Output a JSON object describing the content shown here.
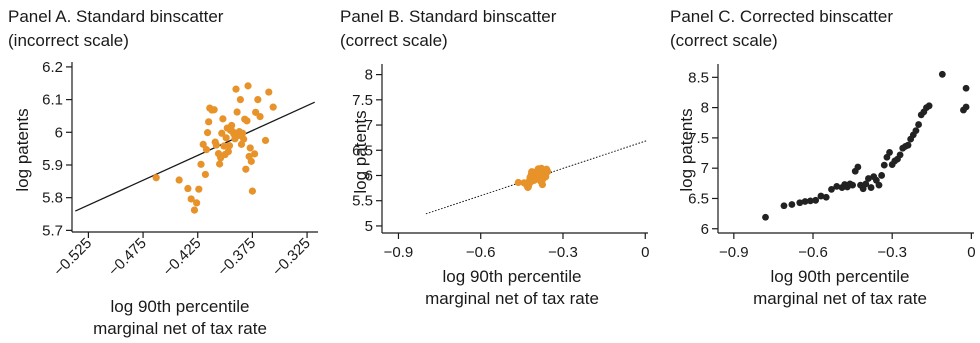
{
  "chart_data": [
    {
      "type": "scatter",
      "title": "Panel A. Standard binscatter",
      "subtitle": "(incorrect scale)",
      "xlabel": [
        "log 90th percentile",
        "marginal net of tax rate"
      ],
      "ylabel": "log patents",
      "xlim": [
        -0.54,
        -0.315
      ],
      "ylim": [
        5.695,
        6.215
      ],
      "xticks": [
        -0.525,
        -0.475,
        -0.425,
        -0.375,
        -0.325
      ],
      "xtick_labels": [
        "−0.525",
        "−0.475",
        "−0.425",
        "−0.375",
        "−0.325"
      ],
      "yticks": [
        5.7,
        5.8,
        5.9,
        6.0,
        6.1,
        6.2
      ],
      "ytick_labels": [
        "5.7",
        "5.8",
        "5.9",
        "6",
        "6.1",
        "6.2"
      ],
      "grid": false,
      "fit_line": {
        "x": [
          -0.537,
          -0.318
        ],
        "y": [
          5.759,
          6.092
        ],
        "style": "solid"
      },
      "series": [
        {
          "color": "#E8922A",
          "points": [
            [
              -0.463,
              5.861
            ],
            [
              -0.442,
              5.854
            ],
            [
              -0.434,
              5.828
            ],
            [
              -0.431,
              5.796
            ],
            [
              -0.428,
              5.762
            ],
            [
              -0.426,
              5.784
            ],
            [
              -0.424,
              5.826
            ],
            [
              -0.422,
              5.902
            ],
            [
              -0.42,
              5.963
            ],
            [
              -0.418,
              5.871
            ],
            [
              -0.417,
              5.947
            ],
            [
              -0.416,
              5.999
            ],
            [
              -0.415,
              6.032
            ],
            [
              -0.414,
              6.074
            ],
            [
              -0.412,
              6.068
            ],
            [
              -0.41,
              6.069
            ],
            [
              -0.409,
              5.97
            ],
            [
              -0.408,
              5.961
            ],
            [
              -0.406,
              5.935
            ],
            [
              -0.405,
              5.903
            ],
            [
              -0.404,
              5.922
            ],
            [
              -0.403,
              5.997
            ],
            [
              -0.402,
              6.041
            ],
            [
              -0.401,
              5.958
            ],
            [
              -0.4,
              5.932
            ],
            [
              -0.399,
              5.983
            ],
            [
              -0.398,
              6.013
            ],
            [
              -0.397,
              5.941
            ],
            [
              -0.396,
              5.959
            ],
            [
              -0.395,
              6.006
            ],
            [
              -0.394,
              6.021
            ],
            [
              -0.393,
              6.002
            ],
            [
              -0.392,
              5.995
            ],
            [
              -0.391,
              5.98
            ],
            [
              -0.39,
              6.132
            ],
            [
              -0.389,
              6.062
            ],
            [
              -0.388,
              5.99
            ],
            [
              -0.387,
              6.002
            ],
            [
              -0.386,
              6.1
            ],
            [
              -0.385,
              5.963
            ],
            [
              -0.384,
              5.997
            ],
            [
              -0.383,
              5.979
            ],
            [
              -0.382,
              6.04
            ],
            [
              -0.381,
              5.887
            ],
            [
              -0.38,
              6.035
            ],
            [
              -0.379,
              6.142
            ],
            [
              -0.378,
              5.926
            ],
            [
              -0.377,
              5.952
            ],
            [
              -0.376,
              5.911
            ],
            [
              -0.375,
              5.82
            ],
            [
              -0.373,
              5.934
            ],
            [
              -0.372,
              6.061
            ],
            [
              -0.37,
              6.1
            ],
            [
              -0.368,
              6.048
            ],
            [
              -0.363,
              5.975
            ],
            [
              -0.36,
              6.123
            ],
            [
              -0.356,
              6.077
            ]
          ]
        }
      ]
    },
    {
      "type": "scatter",
      "title": "Panel B. Standard binscatter",
      "subtitle": "(correct scale)",
      "xlabel": [
        "log 90th percentile",
        "marginal net of tax rate"
      ],
      "ylabel": "log patents",
      "xlim": [
        -0.96,
        0.01
      ],
      "ylim": [
        4.86,
        8.21
      ],
      "xticks": [
        -0.9,
        -0.6,
        -0.3,
        0
      ],
      "xtick_labels": [
        "−0.9",
        "−0.6",
        "−0.3",
        "0"
      ],
      "yticks": [
        5,
        5.5,
        6,
        6.5,
        7,
        7.5,
        8
      ],
      "ytick_labels": [
        "5",
        "5.5",
        "6",
        "6.5",
        "7",
        "7.5",
        "8"
      ],
      "grid": false,
      "fit_line": {
        "x": [
          -0.8,
          0.005
        ],
        "y": [
          5.24,
          6.69
        ],
        "style": "dotted"
      },
      "fit_line_solid": {
        "x": [
          -0.47,
          -0.34
        ],
        "y": [
          5.82,
          6.07
        ]
      },
      "series": [
        {
          "color": "#E8922A",
          "points": [
            [
              -0.463,
              5.861
            ],
            [
              -0.442,
              5.854
            ],
            [
              -0.434,
              5.828
            ],
            [
              -0.431,
              5.796
            ],
            [
              -0.428,
              5.762
            ],
            [
              -0.426,
              5.784
            ],
            [
              -0.424,
              5.826
            ],
            [
              -0.422,
              5.902
            ],
            [
              -0.42,
              5.963
            ],
            [
              -0.418,
              5.871
            ],
            [
              -0.417,
              5.947
            ],
            [
              -0.416,
              5.999
            ],
            [
              -0.415,
              6.032
            ],
            [
              -0.414,
              6.074
            ],
            [
              -0.412,
              6.068
            ],
            [
              -0.41,
              6.069
            ],
            [
              -0.409,
              5.97
            ],
            [
              -0.408,
              5.961
            ],
            [
              -0.406,
              5.935
            ],
            [
              -0.405,
              5.903
            ],
            [
              -0.404,
              5.922
            ],
            [
              -0.403,
              5.997
            ],
            [
              -0.402,
              6.041
            ],
            [
              -0.401,
              5.958
            ],
            [
              -0.4,
              5.932
            ],
            [
              -0.399,
              5.983
            ],
            [
              -0.398,
              6.013
            ],
            [
              -0.397,
              5.941
            ],
            [
              -0.396,
              5.959
            ],
            [
              -0.395,
              6.006
            ],
            [
              -0.394,
              6.021
            ],
            [
              -0.393,
              6.002
            ],
            [
              -0.392,
              5.995
            ],
            [
              -0.391,
              5.98
            ],
            [
              -0.39,
              6.132
            ],
            [
              -0.389,
              6.062
            ],
            [
              -0.388,
              5.99
            ],
            [
              -0.387,
              6.002
            ],
            [
              -0.386,
              6.1
            ],
            [
              -0.385,
              5.963
            ],
            [
              -0.384,
              5.997
            ],
            [
              -0.383,
              5.979
            ],
            [
              -0.382,
              6.04
            ],
            [
              -0.381,
              5.887
            ],
            [
              -0.38,
              6.035
            ],
            [
              -0.379,
              6.142
            ],
            [
              -0.378,
              5.926
            ],
            [
              -0.377,
              5.952
            ],
            [
              -0.376,
              5.911
            ],
            [
              -0.375,
              5.82
            ],
            [
              -0.373,
              5.934
            ],
            [
              -0.372,
              6.061
            ],
            [
              -0.37,
              6.1
            ],
            [
              -0.368,
              6.048
            ],
            [
              -0.363,
              5.975
            ],
            [
              -0.36,
              6.123
            ],
            [
              -0.356,
              6.077
            ]
          ]
        }
      ]
    },
    {
      "type": "scatter",
      "title": "Panel C. Corrected binscatter",
      "subtitle": "(correct scale)",
      "xlabel": [
        "log 90th percentile",
        "marginal net of tax rate"
      ],
      "ylabel": "log patents",
      "xlim": [
        -0.96,
        0.01
      ],
      "ylim": [
        5.93,
        8.72
      ],
      "xticks": [
        -0.9,
        -0.6,
        -0.3,
        0
      ],
      "xtick_labels": [
        "−0.9",
        "−0.6",
        "−0.3",
        "0"
      ],
      "yticks": [
        6,
        6.5,
        7,
        7.5,
        8,
        8.5
      ],
      "ytick_labels": [
        "6",
        "6.5",
        "7",
        "7.5",
        "8",
        "8.5"
      ],
      "grid": false,
      "series": [
        {
          "color": "#222222",
          "points": [
            [
              -0.78,
              6.19
            ],
            [
              -0.71,
              6.38
            ],
            [
              -0.68,
              6.4
            ],
            [
              -0.65,
              6.43
            ],
            [
              -0.63,
              6.45
            ],
            [
              -0.61,
              6.46
            ],
            [
              -0.59,
              6.47
            ],
            [
              -0.57,
              6.54
            ],
            [
              -0.55,
              6.52
            ],
            [
              -0.53,
              6.65
            ],
            [
              -0.51,
              6.7
            ],
            [
              -0.49,
              6.68
            ],
            [
              -0.48,
              6.73
            ],
            [
              -0.47,
              6.69
            ],
            [
              -0.46,
              6.74
            ],
            [
              -0.45,
              6.72
            ],
            [
              -0.44,
              6.95
            ],
            [
              -0.43,
              7.02
            ],
            [
              -0.42,
              6.72
            ],
            [
              -0.41,
              6.66
            ],
            [
              -0.4,
              6.74
            ],
            [
              -0.39,
              6.83
            ],
            [
              -0.38,
              6.68
            ],
            [
              -0.37,
              6.86
            ],
            [
              -0.36,
              6.8
            ],
            [
              -0.35,
              6.72
            ],
            [
              -0.34,
              6.88
            ],
            [
              -0.33,
              7.05
            ],
            [
              -0.32,
              7.18
            ],
            [
              -0.31,
              7.26
            ],
            [
              -0.3,
              7.06
            ],
            [
              -0.29,
              7.12
            ],
            [
              -0.28,
              7.15
            ],
            [
              -0.27,
              7.22
            ],
            [
              -0.26,
              7.33
            ],
            [
              -0.25,
              7.36
            ],
            [
              -0.24,
              7.38
            ],
            [
              -0.23,
              7.48
            ],
            [
              -0.22,
              7.55
            ],
            [
              -0.21,
              7.62
            ],
            [
              -0.2,
              7.72
            ],
            [
              -0.19,
              7.88
            ],
            [
              -0.18,
              7.93
            ],
            [
              -0.17,
              8.0
            ],
            [
              -0.16,
              8.03
            ],
            [
              -0.11,
              8.55
            ],
            [
              -0.03,
              7.96
            ],
            [
              -0.02,
              8.01
            ],
            [
              -0.02,
              8.32
            ]
          ]
        }
      ]
    }
  ]
}
